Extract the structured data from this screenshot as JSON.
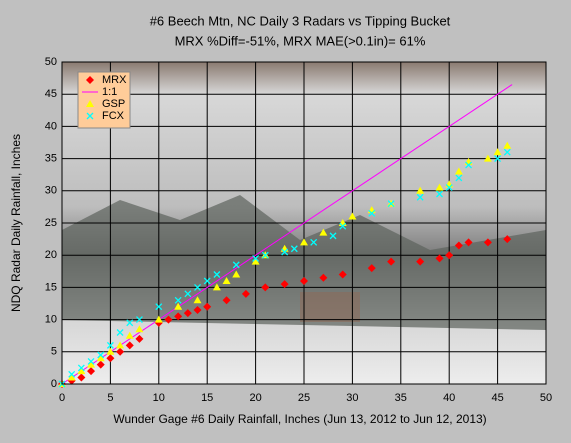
{
  "chart_data": {
    "type": "scatter",
    "title": "#6 Beech Mtn, NC Daily 3 Radars  vs Tipping Bucket",
    "subtitle": "MRX %Diff=-51%, MRX MAE(>0.1in)= 61%",
    "xlabel": "Wunder Gage #6 Daily Rainfall, Inches (Jun 13, 2012 to Jun 12, 2013)",
    "ylabel": "NDQ Radar Daily Rainfall, Inches",
    "xlim": [
      0,
      50
    ],
    "ylim": [
      0,
      50
    ],
    "xticks": [
      0,
      5,
      10,
      15,
      20,
      25,
      30,
      35,
      40,
      45,
      50
    ],
    "yticks": [
      0,
      5,
      10,
      15,
      20,
      25,
      30,
      35,
      40,
      45,
      50
    ],
    "grid": true,
    "legend": "upper-left",
    "series": [
      {
        "name": "MRX",
        "color": "#ff0000",
        "marker": "diamond",
        "x": [
          0,
          1,
          2,
          3,
          4,
          5,
          6,
          7,
          8,
          10,
          11,
          12,
          13,
          14,
          15,
          17,
          19,
          21,
          23,
          25,
          27,
          29,
          32,
          34,
          37,
          39,
          40,
          41,
          42,
          44,
          46
        ],
        "values": [
          0,
          0.5,
          1,
          2,
          3,
          4,
          5,
          6,
          7,
          9.5,
          10,
          10.5,
          11,
          11.5,
          12,
          13,
          14,
          15,
          15.5,
          16,
          16.5,
          17,
          18,
          19,
          19,
          19.5,
          20,
          21.5,
          22,
          22,
          22.5
        ]
      },
      {
        "name": "1:1",
        "color": "#ff00ff",
        "marker": "line",
        "x": [
          0,
          46.5
        ],
        "values": [
          0,
          46.5
        ]
      },
      {
        "name": "GSP",
        "color": "#ffff00",
        "marker": "triangle",
        "x": [
          0,
          1,
          2,
          3,
          4,
          5,
          6,
          7,
          8,
          10,
          12,
          14,
          16,
          17,
          18,
          20,
          21,
          23,
          25,
          27,
          29,
          30,
          32,
          34,
          37,
          39,
          40,
          41,
          42,
          44,
          45,
          46
        ],
        "values": [
          0,
          1,
          2,
          3,
          4,
          5,
          6,
          7.5,
          8.5,
          10,
          12,
          13,
          15,
          16,
          17,
          19,
          20,
          21,
          22,
          23.5,
          25,
          26,
          27,
          28,
          30,
          30.5,
          31,
          33,
          34.5,
          35,
          36,
          37
        ]
      },
      {
        "name": "FCX",
        "color": "#00ffff",
        "marker": "cross",
        "x": [
          0,
          1,
          2,
          3,
          4,
          5,
          6,
          7,
          8,
          10,
          12,
          13,
          14,
          15,
          16,
          18,
          20,
          21,
          23,
          24,
          26,
          28,
          29,
          32,
          34,
          37,
          39,
          40,
          41,
          42,
          45,
          46
        ],
        "values": [
          0,
          1.5,
          2.5,
          3.5,
          4.5,
          6,
          8,
          9.5,
          10,
          12,
          13,
          14,
          15,
          16,
          17,
          18.5,
          19.5,
          20,
          20.5,
          21,
          22,
          23,
          24.5,
          26.5,
          28,
          29,
          29.5,
          30.5,
          32,
          34,
          35,
          36
        ]
      }
    ]
  }
}
